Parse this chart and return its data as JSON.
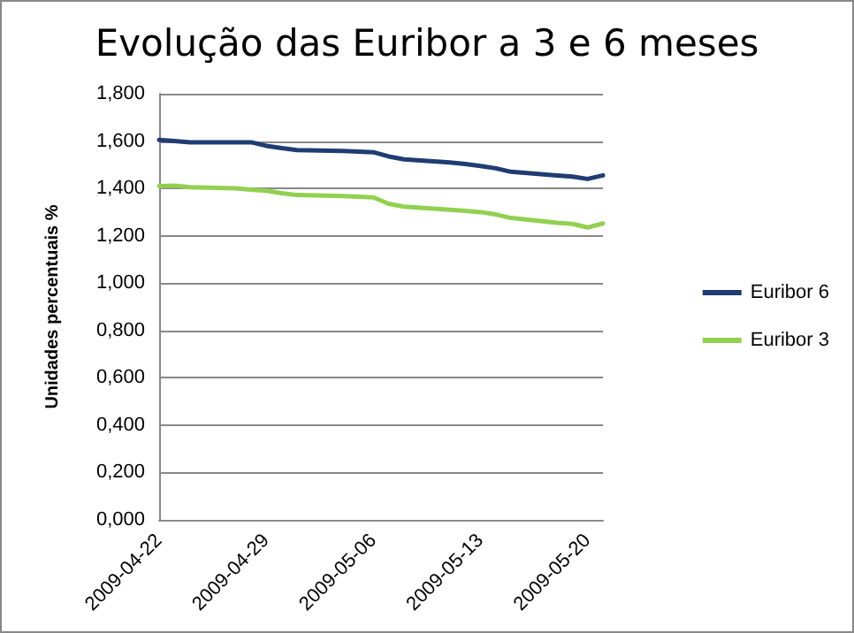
{
  "chart_data": {
    "type": "line",
    "title": "Evolução das Euribor a 3 e 6 meses",
    "ylabel": "Unidades percentuais %",
    "x": [
      "2009-04-22",
      "2009-04-23",
      "2009-04-24",
      "2009-04-27",
      "2009-04-28",
      "2009-04-29",
      "2009-04-30",
      "2009-05-01",
      "2009-05-04",
      "2009-05-05",
      "2009-05-06",
      "2009-05-07",
      "2009-05-08",
      "2009-05-11",
      "2009-05-12",
      "2009-05-13",
      "2009-05-14",
      "2009-05-15",
      "2009-05-18",
      "2009-05-19",
      "2009-05-20",
      "2009-05-21"
    ],
    "series": [
      {
        "name": "Euribor 6",
        "color": "#1f3c73",
        "values": [
          1.605,
          1.6,
          1.595,
          1.595,
          1.595,
          1.58,
          1.57,
          1.562,
          1.558,
          1.555,
          1.553,
          1.535,
          1.523,
          1.51,
          1.503,
          1.495,
          1.485,
          1.47,
          1.455,
          1.45,
          1.44,
          1.455
        ]
      },
      {
        "name": "Euribor 3",
        "color": "#92d050",
        "values": [
          1.41,
          1.412,
          1.405,
          1.4,
          1.395,
          1.39,
          1.38,
          1.372,
          1.368,
          1.365,
          1.362,
          1.335,
          1.323,
          1.31,
          1.305,
          1.3,
          1.29,
          1.275,
          1.255,
          1.25,
          1.235,
          1.252
        ]
      }
    ],
    "xlim": [
      "2009-04-22",
      "2009-05-21"
    ],
    "xticks": [
      "2009-04-22",
      "2009-04-29",
      "2009-05-06",
      "2009-05-13",
      "2009-05-20"
    ],
    "ylim": [
      0,
      1.8
    ],
    "yticks": [
      {
        "value": 0,
        "label": "0,000"
      },
      {
        "value": 0.2,
        "label": "0,200"
      },
      {
        "value": 0.4,
        "label": "0,400"
      },
      {
        "value": 0.6,
        "label": "0,600"
      },
      {
        "value": 0.8,
        "label": "0,800"
      },
      {
        "value": 1,
        "label": "1,000"
      },
      {
        "value": 1.2,
        "label": "1,200"
      },
      {
        "value": 1.4,
        "label": "1,400"
      },
      {
        "value": 1.6,
        "label": "1,600"
      },
      {
        "value": 1.8,
        "label": "1,800"
      }
    ],
    "grid": "y",
    "legend": "right",
    "marker": "none",
    "line_style": "solid"
  }
}
